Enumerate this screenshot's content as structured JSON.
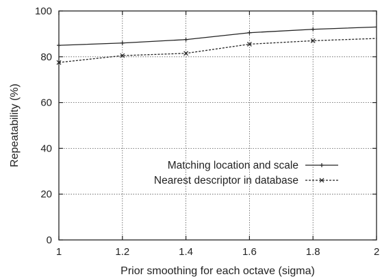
{
  "chart_data": {
    "type": "line",
    "xlabel": "Prior smoothing for each octave (sigma)",
    "ylabel": "Repeatability (%)",
    "xlim": [
      1,
      2
    ],
    "ylim": [
      0,
      100
    ],
    "x_ticks": [
      "1",
      "1.2",
      "1.4",
      "1.6",
      "1.8",
      "2"
    ],
    "y_ticks": [
      "0",
      "20",
      "40",
      "60",
      "80",
      "100"
    ],
    "grid": true,
    "legend_position": "center-right",
    "series": [
      {
        "name": "Matching location and scale",
        "line_style": "solid",
        "marker": "plus",
        "color": "#222222",
        "x": [
          1,
          1.2,
          1.4,
          1.6,
          1.8,
          2
        ],
        "y": [
          85,
          86,
          87.5,
          90.5,
          92,
          93
        ]
      },
      {
        "name": "Nearest descriptor in database",
        "line_style": "dashed",
        "marker": "x",
        "color": "#222222",
        "x": [
          1,
          1.2,
          1.4,
          1.6,
          1.8,
          2
        ],
        "y": [
          77.5,
          80.5,
          81.5,
          85.5,
          87,
          88
        ]
      }
    ]
  }
}
